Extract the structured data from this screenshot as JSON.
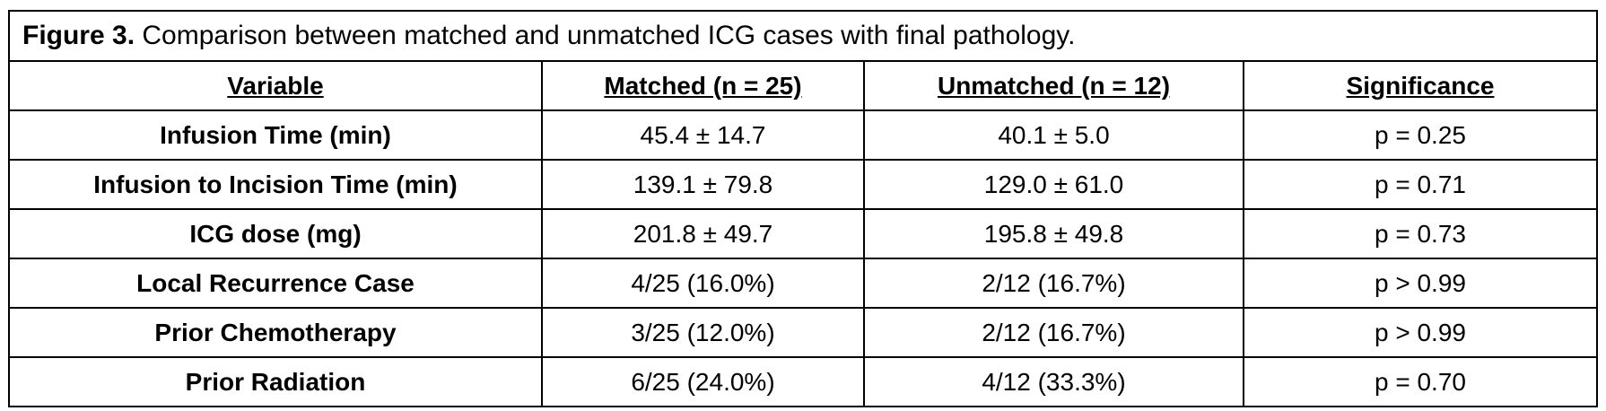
{
  "title": {
    "label": "Figure 3.",
    "text": "Comparison between matched and unmatched ICG cases with final pathology."
  },
  "table": {
    "header": [
      "Variable",
      "Matched (n = 25)",
      "Unmatched (n = 12)",
      "Significance"
    ],
    "rows": [
      [
        "Infusion Time (min)",
        "45.4 ± 14.7",
        "40.1 ± 5.0",
        "p = 0.25"
      ],
      [
        "Infusion to Incision Time (min)",
        "139.1 ± 79.8",
        "129.0 ± 61.0",
        "p = 0.71"
      ],
      [
        "ICG dose (mg)",
        "201.8 ± 49.7",
        "195.8 ± 49.8",
        "p = 0.73"
      ],
      [
        "Local Recurrence Case",
        "4/25 (16.0%)",
        "2/12 (16.7%)",
        "p > 0.99"
      ],
      [
        "Prior Chemotherapy",
        "3/25 (12.0%)",
        "2/12 (16.7%)",
        "p > 0.99"
      ],
      [
        "Prior Radiation",
        "6/25 (24.0%)",
        "4/12 (33.3%)",
        "p = 0.70"
      ]
    ]
  }
}
